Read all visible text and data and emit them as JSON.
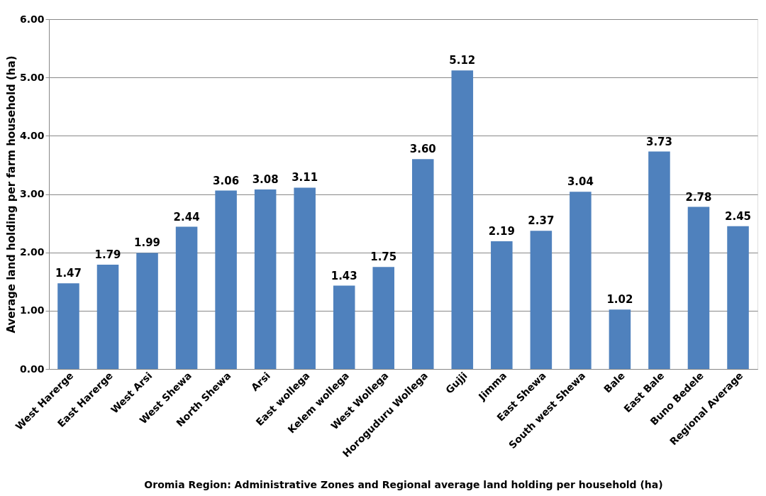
{
  "chart_data": {
    "type": "bar",
    "ylabel": "Average land holding per farm household (ha)",
    "xlabel": "Oromia Region: Administrative Zones  and Regional  average land holding  per household  (ha)",
    "categories": [
      "West Harerge",
      "East Harerge",
      "West Arsi",
      "West Shewa",
      "North Shewa",
      "Arsi",
      "East wollega",
      "Kelem wollega",
      "West Wollega",
      "Horoguduru Wollega",
      "Gujji",
      "Jimma",
      "East Shewa",
      "South west Shewa",
      "Bale",
      "East Bale",
      "Buno Bedele",
      "Regional Average"
    ],
    "values": [
      1.47,
      1.79,
      1.99,
      2.44,
      3.06,
      3.08,
      3.11,
      1.43,
      1.75,
      3.6,
      5.12,
      2.19,
      2.37,
      3.04,
      1.02,
      3.73,
      2.78,
      2.45
    ],
    "value_labels": [
      "1.47",
      "1.79",
      "1.99",
      "2.44",
      "3.06",
      "3.08",
      "3.11",
      "1.43",
      "1.75",
      "3.60",
      "5.12",
      "2.19",
      "2.37",
      "3.04",
      "1.02",
      "3.73",
      "2.78",
      "2.45"
    ],
    "color": "#4f81bd",
    "ylim": [
      0,
      6
    ],
    "yticks": [
      {
        "value": 0,
        "label": "0.00"
      },
      {
        "value": 1,
        "label": "1.00"
      },
      {
        "value": 2,
        "label": "2.00"
      },
      {
        "value": 3,
        "label": "3.00"
      },
      {
        "value": 4,
        "label": "4.00"
      },
      {
        "value": 5,
        "label": "5.00"
      },
      {
        "value": 6,
        "label": "6.00"
      }
    ],
    "grid": "y"
  }
}
